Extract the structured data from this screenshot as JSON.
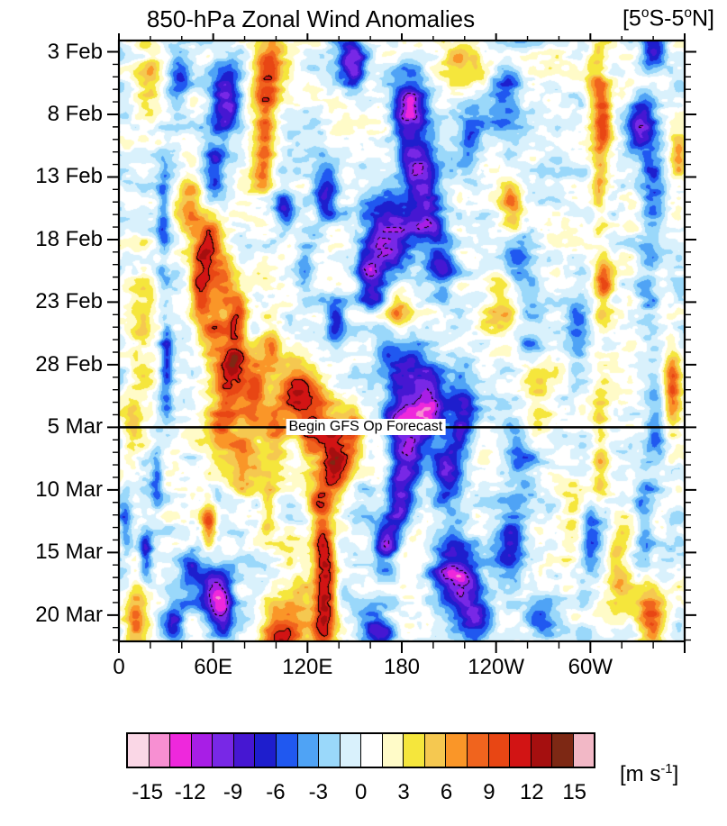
{
  "chart_data": {
    "type": "heatmap",
    "title": "850-hPa Zonal Wind Anomalies",
    "band_label_parts": {
      "p1": "[5",
      "s1": "o",
      "p2": "S-5",
      "s2": "o",
      "p3": "N]"
    },
    "x_axis": {
      "tick_labels": [
        "0",
        "60E",
        "120E",
        "180",
        "120W",
        "60W"
      ],
      "tick_deg": [
        0,
        60,
        120,
        180,
        240,
        300
      ],
      "minor_step_deg": 20,
      "range_deg": [
        0,
        360
      ]
    },
    "y_axis": {
      "tick_labels": [
        "3 Feb",
        "8 Feb",
        "13 Feb",
        "18 Feb",
        "23 Feb",
        "28 Feb",
        "5 Mar",
        "10 Mar",
        "15 Mar",
        "20 Mar"
      ],
      "tick_days": [
        0.9,
        5.9,
        10.9,
        15.9,
        20.9,
        25.9,
        30.9,
        35.9,
        40.9,
        45.9
      ],
      "minor_step_days": 1,
      "range_days": [
        0,
        48
      ]
    },
    "annotation": {
      "text": "Begin GFS Op Forecast",
      "day": 30.9,
      "center_deg": 157
    },
    "colorbar": {
      "tick_labels": [
        "-15",
        "-12",
        "-9",
        "-6",
        "-3",
        "0",
        "3",
        "6",
        "9",
        "12",
        "15"
      ],
      "level_min": -15,
      "level_max": 15,
      "level_step": 1.5,
      "colors": [
        "#FAD7E6",
        "#F78FD2",
        "#EE28DC",
        "#A81EE6",
        "#7828E6",
        "#4617D2",
        "#1E1ECD",
        "#2058F0",
        "#4FA3F5",
        "#9AD8FA",
        "#D9F1FC",
        "#FFFFFF",
        "#FFFBC8",
        "#F5E63C",
        "#F5C850",
        "#FA9628",
        "#F0641E",
        "#E84614",
        "#D21414",
        "#A50F0F",
        "#7D2814",
        "#F2B8C6"
      ],
      "units_parts": {
        "p1": "[m s",
        "sup": "-1",
        "p2": "]"
      }
    },
    "contour_levels": {
      "positive": 10.5,
      "negative": -10.5
    },
    "field_model": {
      "compression": {
        "scale": 13,
        "gain": 14.5
      },
      "noise": [
        {
          "sx": 27,
          "sy": 16,
          "amp": 2.2,
          "seed": 11
        },
        {
          "sx": 9,
          "sy": 6,
          "amp": 1.4,
          "seed": 23
        }
      ],
      "features": [
        [
          95,
          2,
          8,
          9,
          2.5
        ],
        [
          93,
          6.5,
          9,
          7,
          3
        ],
        [
          90,
          10.5,
          6,
          7,
          2
        ],
        [
          218,
          2,
          5,
          14,
          2
        ],
        [
          305,
          4,
          6,
          7,
          3.5
        ],
        [
          308,
          6,
          9,
          5,
          1.8
        ],
        [
          306,
          11,
          5,
          5,
          4
        ],
        [
          308,
          19.5,
          8,
          5.5,
          2.5
        ],
        [
          306,
          33,
          4,
          5,
          5
        ],
        [
          356,
          9,
          6,
          5,
          2
        ],
        [
          352,
          27.5,
          9,
          5.5,
          3
        ],
        [
          45,
          13.5,
          7,
          8,
          2.5
        ],
        [
          57,
          16.5,
          12,
          7,
          2.2
        ],
        [
          52,
          19.5,
          15,
          6,
          2.2
        ],
        [
          66,
          19,
          8,
          8,
          2.5
        ],
        [
          75,
          22.5,
          12,
          6,
          2.2
        ],
        [
          60,
          23.5,
          8,
          8,
          2.5
        ],
        [
          72,
          26.5,
          15,
          8,
          2.5
        ],
        [
          86,
          28,
          11,
          7,
          2.5
        ],
        [
          97,
          25,
          7,
          8,
          2.5
        ],
        [
          65,
          30.5,
          8,
          9,
          2.5
        ],
        [
          80,
          33.5,
          7,
          9,
          3
        ],
        [
          95,
          37,
          6,
          5,
          2
        ],
        [
          112,
          27.5,
          10,
          8,
          2.5
        ],
        [
          123,
          30.5,
          15,
          9,
          2.8
        ],
        [
          137,
          33,
          15,
          8,
          2.8
        ],
        [
          148,
          31.5,
          9,
          6,
          2
        ],
        [
          128,
          37,
          9,
          7,
          2.2
        ],
        [
          100,
          31,
          7,
          8,
          3
        ],
        [
          57,
          38.5,
          11,
          4.5,
          1.6
        ],
        [
          130,
          41,
          11,
          6,
          2.2
        ],
        [
          132,
          44,
          15,
          5.5,
          2.6
        ],
        [
          129,
          47,
          10,
          6,
          2
        ],
        [
          112,
          45.5,
          7,
          14,
          3.5
        ],
        [
          100,
          47.5,
          8,
          9,
          2
        ],
        [
          10,
          46,
          7,
          7,
          2.5
        ],
        [
          8,
          31,
          4,
          6,
          3
        ],
        [
          15,
          24,
          4,
          9,
          6
        ],
        [
          20,
          2.5,
          4,
          9,
          3
        ],
        [
          250,
          13.5,
          7,
          7,
          2.2
        ],
        [
          243,
          21,
          5,
          11,
          3
        ],
        [
          265,
          28.5,
          5,
          11,
          4
        ],
        [
          290,
          38.5,
          4,
          11,
          4
        ],
        [
          318,
          42,
          5,
          7,
          3
        ],
        [
          178,
          21.5,
          6,
          7,
          2
        ],
        [
          338,
          45.5,
          8,
          8,
          2.5
        ],
        [
          148,
          1.5,
          -10,
          9,
          2
        ],
        [
          150,
          2.5,
          -4,
          5,
          1.5
        ],
        [
          185,
          5.5,
          -11,
          11,
          2.8
        ],
        [
          183,
          6.5,
          -4,
          6,
          2
        ],
        [
          190,
          10.5,
          -8,
          10,
          2.5
        ],
        [
          225,
          8,
          -4,
          8,
          3
        ],
        [
          68,
          4.5,
          -11,
          9,
          2.5
        ],
        [
          70,
          5.5,
          -2,
          5,
          1.5
        ],
        [
          60,
          10,
          -7,
          7,
          2.5
        ],
        [
          38,
          3,
          -5,
          7,
          2.5
        ],
        [
          132,
          12,
          -9,
          8,
          2.2
        ],
        [
          118,
          18,
          -5,
          6,
          2
        ],
        [
          105,
          13.5,
          -6,
          6,
          2
        ],
        [
          172,
          15.5,
          -13,
          13,
          3
        ],
        [
          195,
          14,
          -8,
          10,
          2.5
        ],
        [
          160,
          19,
          -9,
          8,
          2.2
        ],
        [
          205,
          18,
          -7,
          9,
          2.5
        ],
        [
          138,
          22.5,
          -7,
          6,
          2.2
        ],
        [
          185,
          27.5,
          -10,
          16,
          3.5
        ],
        [
          181,
          31.5,
          -10,
          9,
          2.8
        ],
        [
          186,
          33.5,
          -5,
          7,
          2.5
        ],
        [
          196,
          30,
          -10,
          8,
          2.5
        ],
        [
          178,
          36.5,
          -10,
          7,
          2.6
        ],
        [
          208,
          34.5,
          -9,
          9,
          2.8
        ],
        [
          218,
          29.5,
          -8,
          9,
          2.8
        ],
        [
          170,
          40,
          -8,
          7,
          2.2
        ],
        [
          212,
          42.5,
          -11,
          12,
          2.8
        ],
        [
          220,
          44,
          -6,
          7,
          2
        ],
        [
          228,
          46,
          -8,
          9,
          2.2
        ],
        [
          262,
          24,
          -4,
          9,
          3
        ],
        [
          62,
          44.5,
          -11,
          9,
          2.4
        ],
        [
          66,
          46,
          -5,
          6,
          1.8
        ],
        [
          35,
          46.5,
          -7,
          6,
          2
        ],
        [
          46,
          42.5,
          -6,
          7,
          2
        ],
        [
          28,
          14,
          -5,
          4,
          4
        ],
        [
          30,
          26,
          -6,
          4,
          4
        ],
        [
          24,
          35,
          -5,
          4,
          3
        ],
        [
          17,
          41,
          -6,
          4,
          2.2
        ],
        [
          4,
          38.5,
          -6,
          4,
          2
        ],
        [
          245,
          4.5,
          -5,
          11,
          2.8
        ],
        [
          252,
          17,
          -5,
          10,
          3
        ],
        [
          255,
          33,
          -5,
          11,
          3.5
        ],
        [
          249,
          40.5,
          -7,
          10,
          2.8
        ],
        [
          268,
          46.5,
          -5,
          9,
          2
        ],
        [
          292,
          23,
          -5,
          7,
          3
        ],
        [
          300,
          39.5,
          -7,
          8,
          2.8
        ],
        [
          332,
          6.5,
          -10,
          8,
          2.2
        ],
        [
          340,
          1,
          -7,
          7,
          1.6
        ],
        [
          340,
          10.5,
          -4,
          7,
          4
        ],
        [
          337,
          20,
          -4,
          7,
          4
        ],
        [
          341,
          31,
          -4,
          6,
          3
        ],
        [
          334,
          38,
          -5,
          6,
          3
        ],
        [
          165,
          47.5,
          -7,
          9,
          2
        ]
      ]
    }
  }
}
